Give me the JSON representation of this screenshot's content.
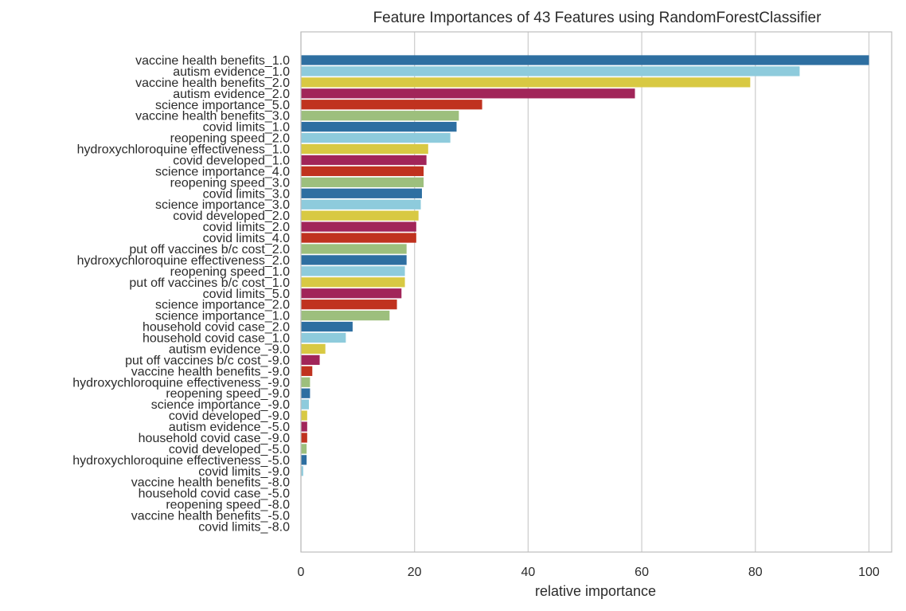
{
  "chart_data": {
    "type": "bar",
    "orientation": "horizontal",
    "title": "Feature Importances of 43 Features using RandomForestClassifier",
    "xlabel": "relative importance",
    "ylabel": "",
    "xlim": [
      0,
      104
    ],
    "xticks": [
      0,
      20,
      40,
      60,
      80,
      100
    ],
    "grid": "vertical",
    "palette": [
      "#2e6fa1",
      "#8ecbdc",
      "#d8c943",
      "#a12559",
      "#c0321f",
      "#9dbf7d"
    ],
    "categories": [
      "vaccine health benefits_1.0",
      "autism evidence_1.0",
      "vaccine health benefits_2.0",
      "autism evidence_2.0",
      "science importance_5.0",
      "vaccine health benefits_3.0",
      "covid limits_1.0",
      "reopening speed_2.0",
      "hydroxychloroquine effectiveness_1.0",
      "covid developed_1.0",
      "science importance_4.0",
      "reopening speed_3.0",
      "covid limits_3.0",
      "science importance_3.0",
      "covid developed_2.0",
      "covid limits_2.0",
      "covid limits_4.0",
      "put off vaccines b/c cost_2.0",
      "hydroxychloroquine effectiveness_2.0",
      "reopening speed_1.0",
      "put off vaccines b/c cost_1.0",
      "covid limits_5.0",
      "science importance_2.0",
      "science importance_1.0",
      "household covid case_2.0",
      "household covid case_1.0",
      "autism evidence_-9.0",
      "put off vaccines b/c cost_-9.0",
      "vaccine health benefits_-9.0",
      "hydroxychloroquine effectiveness_-9.0",
      "reopening speed_-9.0",
      "science importance_-9.0",
      "covid developed_-9.0",
      "autism evidence_-5.0",
      "household covid case_-9.0",
      "covid developed_-5.0",
      "hydroxychloroquine effectiveness_-5.0",
      "covid limits_-9.0",
      "vaccine health benefits_-8.0",
      "household covid case_-5.0",
      "reopening speed_-8.0",
      "vaccine health benefits_-5.0",
      "covid limits_-8.0"
    ],
    "values": [
      100,
      87.8,
      79.1,
      58.8,
      31.9,
      27.8,
      27.4,
      26.3,
      22.4,
      22.1,
      21.6,
      21.6,
      21.3,
      21.1,
      20.7,
      20.3,
      20.3,
      18.6,
      18.6,
      18.3,
      18.3,
      17.7,
      16.9,
      15.6,
      9.1,
      7.9,
      4.3,
      3.3,
      2.0,
      1.6,
      1.6,
      1.4,
      1.1,
      1.1,
      1.1,
      1.0,
      1.0,
      0.4,
      0,
      0,
      0,
      0,
      0
    ]
  }
}
